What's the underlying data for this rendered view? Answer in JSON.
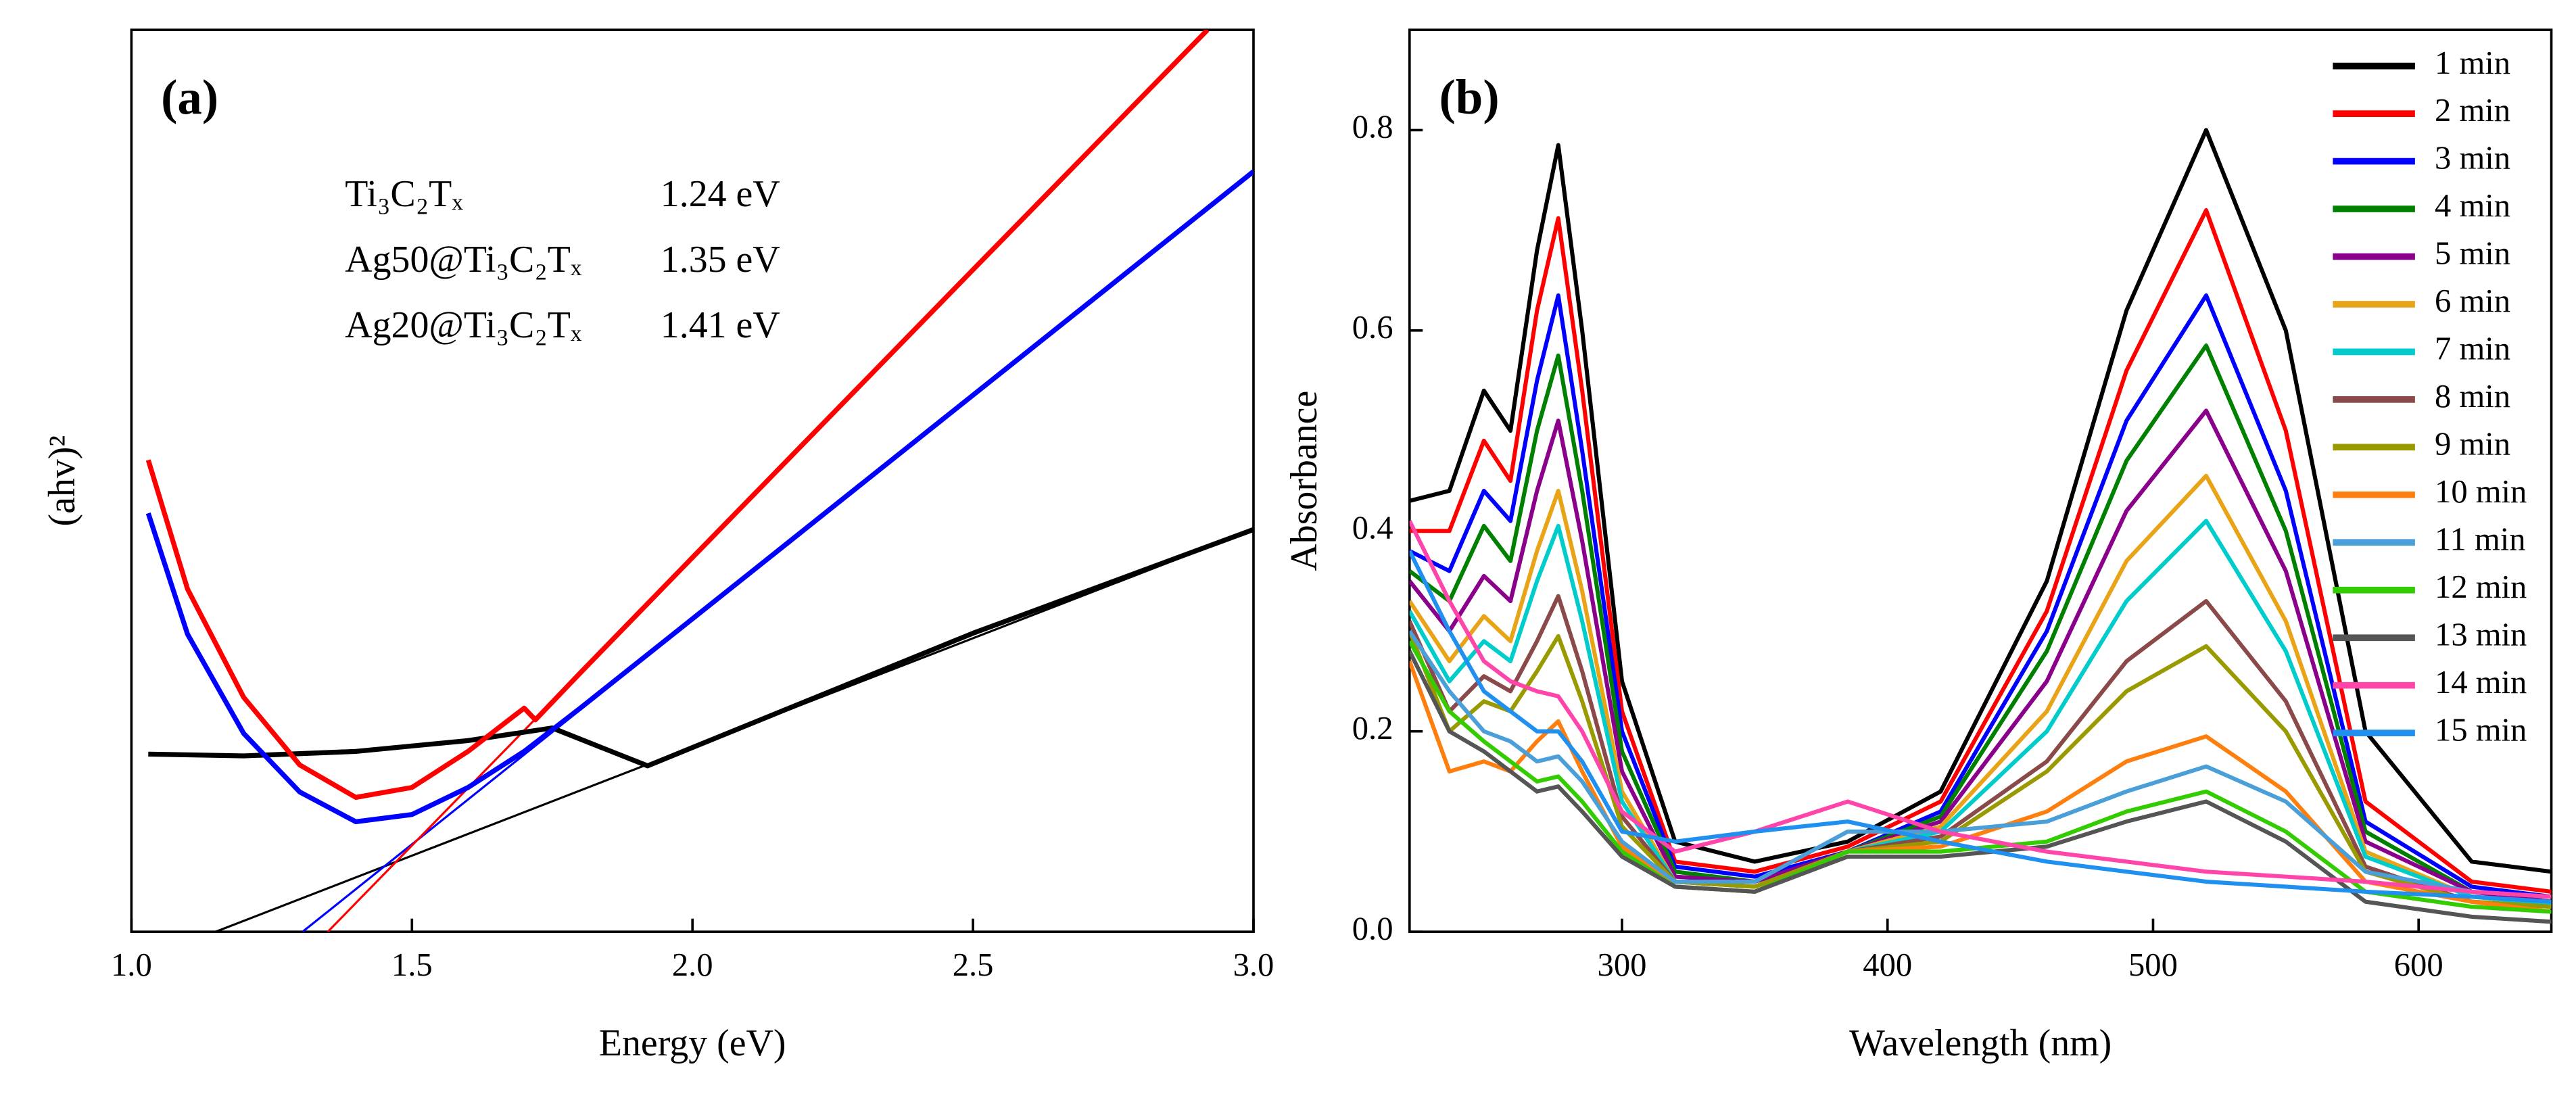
{
  "chart_data": [
    {
      "type": "line",
      "panel_label": "(a)",
      "x_label": "Energy (eV)",
      "y_label": "(ahv)²",
      "xlim": [
        1.0,
        3.0
      ],
      "ylim": [
        0,
        1
      ],
      "xticks": [
        {
          "value": 1.0,
          "label": "1.0"
        },
        1.5,
        {
          "value": 2.0,
          "label": "2.0"
        },
        2.5,
        {
          "value": 3.0,
          "label": "3.0"
        }
      ],
      "series": [
        {
          "name": "Ti₃C₂Tₓ",
          "gap": "1.24 eV",
          "color": "#000000",
          "x": [
            1.03,
            1.2,
            1.4,
            1.6,
            1.75,
            1.92,
            2.5,
            3.0
          ],
          "values": [
            0.197,
            0.195,
            0.2,
            0.212,
            0.226,
            0.184,
            0.331,
            0.446
          ]
        },
        {
          "name": "Ag50@Ti₃C₂Tₓ",
          "gap": "1.35 eV",
          "color": "#0000ff",
          "x": [
            1.03,
            1.1,
            1.2,
            1.3,
            1.4,
            1.5,
            1.6,
            1.7,
            1.8,
            2.0,
            2.5,
            3.0
          ],
          "values": [
            0.464,
            0.33,
            0.22,
            0.155,
            0.122,
            0.13,
            0.16,
            0.2,
            0.248,
            0.347,
            0.595,
            0.843
          ]
        },
        {
          "name": "Ag20@Ti₃C₂Tₓ",
          "gap": "1.41 eV",
          "color": "#ff0000",
          "x": [
            1.03,
            1.1,
            1.2,
            1.3,
            1.4,
            1.5,
            1.6,
            1.7,
            1.72,
            1.8,
            2.0,
            2.5,
            2.918
          ],
          "values": [
            0.523,
            0.38,
            0.26,
            0.185,
            0.149,
            0.16,
            0.2,
            0.248,
            0.235,
            0.287,
            0.415,
            0.734,
            1.0
          ]
        }
      ],
      "tangents": [
        {
          "color": "#000000",
          "x": [
            1.15,
            3.0
          ],
          "values": [
            0,
            0.446
          ]
        },
        {
          "color": "#0000ff",
          "x": [
            1.305,
            3.0
          ],
          "values": [
            0,
            0.843
          ]
        },
        {
          "color": "#ff0000",
          "x": [
            1.35,
            2.918
          ],
          "values": [
            0,
            1.0
          ]
        }
      ]
    },
    {
      "type": "line",
      "panel_label": "(b)",
      "x_label": "Wavelength (nm)",
      "y_label": "Absorbance",
      "xlim": [
        220,
        650
      ],
      "ylim": [
        0,
        0.9
      ],
      "xticks": [
        300,
        400,
        500,
        600
      ],
      "yticks": [
        {
          "value": 0,
          "label": "0.0"
        },
        0.2,
        0.4,
        0.6,
        0.8
      ],
      "x": [
        220,
        235,
        248,
        258,
        268,
        276,
        285,
        300,
        320,
        350,
        385,
        420,
        460,
        490,
        520,
        550,
        580,
        620,
        650
      ],
      "series": [
        {
          "name": "1 min",
          "color": "#000000",
          "values": [
            0.43,
            0.44,
            0.54,
            0.5,
            0.68,
            0.785,
            0.6,
            0.25,
            0.09,
            0.07,
            0.09,
            0.14,
            0.35,
            0.62,
            0.8,
            0.6,
            0.2,
            0.07,
            0.06
          ]
        },
        {
          "name": "2 min",
          "color": "#ff0000",
          "values": [
            0.4,
            0.4,
            0.49,
            0.45,
            0.62,
            0.712,
            0.54,
            0.22,
            0.07,
            0.06,
            0.085,
            0.13,
            0.32,
            0.56,
            0.72,
            0.5,
            0.13,
            0.05,
            0.04
          ]
        },
        {
          "name": "3 min",
          "color": "#0000ff",
          "values": [
            0.38,
            0.36,
            0.44,
            0.41,
            0.55,
            0.635,
            0.48,
            0.2,
            0.065,
            0.055,
            0.08,
            0.12,
            0.3,
            0.51,
            0.635,
            0.44,
            0.11,
            0.045,
            0.035
          ]
        },
        {
          "name": "4 min",
          "color": "#008000",
          "values": [
            0.36,
            0.33,
            0.405,
            0.37,
            0.5,
            0.575,
            0.44,
            0.18,
            0.06,
            0.05,
            0.08,
            0.115,
            0.28,
            0.47,
            0.585,
            0.4,
            0.1,
            0.04,
            0.03
          ]
        },
        {
          "name": "5 min",
          "color": "#8b008b",
          "values": [
            0.35,
            0.3,
            0.355,
            0.33,
            0.44,
            0.51,
            0.39,
            0.16,
            0.055,
            0.05,
            0.08,
            0.11,
            0.25,
            0.42,
            0.52,
            0.36,
            0.09,
            0.04,
            0.03
          ]
        },
        {
          "name": "6 min",
          "color": "#e8a317",
          "values": [
            0.33,
            0.27,
            0.315,
            0.29,
            0.38,
            0.44,
            0.34,
            0.14,
            0.05,
            0.045,
            0.08,
            0.105,
            0.22,
            0.37,
            0.455,
            0.31,
            0.08,
            0.035,
            0.028
          ]
        },
        {
          "name": "7 min",
          "color": "#00cccc",
          "values": [
            0.32,
            0.25,
            0.29,
            0.27,
            0.35,
            0.405,
            0.31,
            0.13,
            0.05,
            0.045,
            0.08,
            0.1,
            0.2,
            0.33,
            0.41,
            0.28,
            0.075,
            0.035,
            0.028
          ]
        },
        {
          "name": "8 min",
          "color": "#8b4a4a",
          "values": [
            0.31,
            0.22,
            0.255,
            0.24,
            0.29,
            0.335,
            0.26,
            0.115,
            0.05,
            0.045,
            0.08,
            0.095,
            0.17,
            0.27,
            0.33,
            0.23,
            0.065,
            0.03,
            0.025
          ]
        },
        {
          "name": "9 min",
          "color": "#999900",
          "values": [
            0.3,
            0.2,
            0.23,
            0.22,
            0.26,
            0.295,
            0.23,
            0.105,
            0.05,
            0.045,
            0.08,
            0.09,
            0.16,
            0.24,
            0.285,
            0.2,
            0.06,
            0.03,
            0.025
          ]
        },
        {
          "name": "10 min",
          "color": "#ff7f0e",
          "values": [
            0.27,
            0.16,
            0.17,
            0.16,
            0.19,
            0.21,
            0.16,
            0.085,
            0.045,
            0.04,
            0.08,
            0.085,
            0.12,
            0.17,
            0.195,
            0.14,
            0.05,
            0.03,
            0.02
          ]
        },
        {
          "name": "11 min",
          "color": "#4a9fd8",
          "values": [
            0.3,
            0.24,
            0.2,
            0.19,
            0.17,
            0.175,
            0.15,
            0.09,
            0.05,
            0.05,
            0.1,
            0.1,
            0.11,
            0.14,
            0.165,
            0.13,
            0.06,
            0.04,
            0.035
          ]
        },
        {
          "name": "12 min",
          "color": "#33cc00",
          "values": [
            0.29,
            0.22,
            0.19,
            0.17,
            0.15,
            0.155,
            0.13,
            0.08,
            0.045,
            0.04,
            0.08,
            0.08,
            0.09,
            0.12,
            0.14,
            0.1,
            0.04,
            0.025,
            0.02
          ]
        },
        {
          "name": "13 min",
          "color": "#555555",
          "values": [
            0.28,
            0.2,
            0.18,
            0.16,
            0.14,
            0.145,
            0.12,
            0.075,
            0.045,
            0.04,
            0.075,
            0.075,
            0.085,
            0.11,
            0.13,
            0.09,
            0.03,
            0.015,
            0.01
          ]
        },
        {
          "name": "14 min",
          "color": "#ff44aa",
          "values": [
            0.41,
            0.33,
            0.27,
            0.25,
            0.24,
            0.235,
            0.2,
            0.12,
            0.08,
            0.1,
            0.13,
            0.1,
            0.08,
            0.07,
            0.06,
            0.055,
            0.05,
            0.04,
            0.035
          ]
        },
        {
          "name": "15 min",
          "color": "#1f8ff0",
          "values": [
            0.38,
            0.3,
            0.24,
            0.22,
            0.2,
            0.2,
            0.17,
            0.1,
            0.09,
            0.1,
            0.11,
            0.09,
            0.07,
            0.06,
            0.05,
            0.045,
            0.04,
            0.035,
            0.03
          ]
        }
      ]
    }
  ]
}
